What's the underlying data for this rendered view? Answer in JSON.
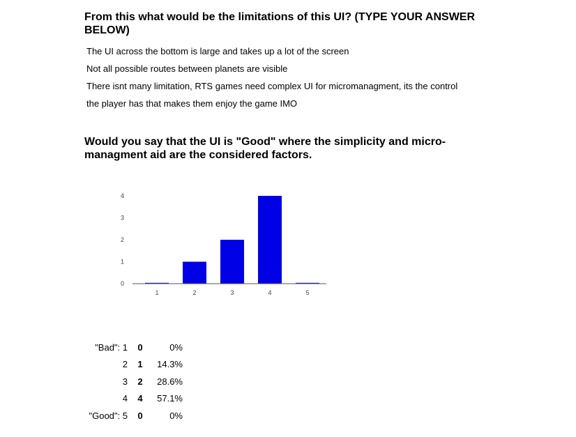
{
  "question1": {
    "title": "From this what would be the limitations of this UI? (TYPE YOUR ANSWER BELOW)",
    "answers": [
      "The UI across the bottom is large and takes up a lot of the screen",
      "Not all possible routes between planets are visible",
      "There isnt many limitation, RTS games need complex UI for micromanagment, its the control",
      "the player has that makes them enjoy the game IMO"
    ]
  },
  "question2": {
    "title": "Would you say that the UI is \"Good\" where the simplicity and micro-managment aid are the considered factors."
  },
  "chart_data": {
    "type": "bar",
    "categories": [
      "1",
      "2",
      "3",
      "4",
      "5"
    ],
    "values": [
      0,
      1,
      2,
      4,
      0
    ],
    "ylim": [
      0,
      4
    ],
    "yticks": [
      "0",
      "1",
      "2",
      "3",
      "4"
    ],
    "bar_color": "#0000e6",
    "grid": false
  },
  "table": [
    {
      "label": "\"Bad\": 1",
      "count": "0",
      "percent": "0%"
    },
    {
      "label": "2",
      "count": "1",
      "percent": "14.3%"
    },
    {
      "label": "3",
      "count": "2",
      "percent": "28.6%"
    },
    {
      "label": "4",
      "count": "4",
      "percent": "57.1%"
    },
    {
      "label": "\"Good\": 5",
      "count": "0",
      "percent": "0%"
    }
  ]
}
